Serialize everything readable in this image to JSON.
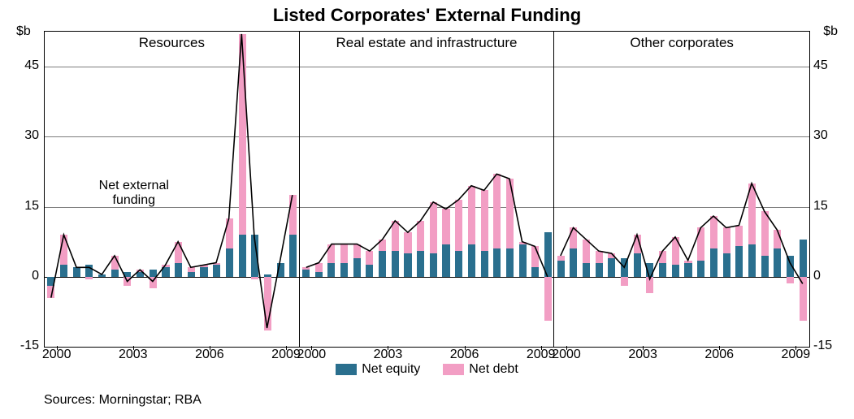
{
  "title": "Listed Corporates' External Funding",
  "y_axis": {
    "unit_label": "$b",
    "min": -15,
    "max": 52.5,
    "ticks": [
      -15,
      0,
      15,
      30,
      45
    ],
    "grid_color": "#7d7d7d",
    "zero_color": "#000000"
  },
  "colors": {
    "net_equity": "#2a6f8e",
    "net_debt": "#f29ec4",
    "line": "#000000",
    "background": "#ffffff"
  },
  "bar_width_ratio": 0.58,
  "line_width": 1.6,
  "x_years_start": 1999.5,
  "x_years_end": 2009.5,
  "x_tick_years": [
    2000,
    2003,
    2006,
    2009
  ],
  "annotation": {
    "panel": 0,
    "text_line1": "Net external",
    "text_line2": "funding",
    "x_year": 2003.0,
    "y_val": 21
  },
  "legend": {
    "items": [
      {
        "label": "Net equity",
        "color_key": "net_equity"
      },
      {
        "label": "Net debt",
        "color_key": "net_debt"
      }
    ]
  },
  "footer": "Sources: Morningstar; RBA",
  "panels": [
    {
      "title": "Resources",
      "data": [
        {
          "t": 1999.5,
          "eq": -2.0,
          "db": -2.5
        },
        {
          "t": 2000.0,
          "eq": 2.5,
          "db": 6.5
        },
        {
          "t": 2000.5,
          "eq": 2.0,
          "db": 0.0
        },
        {
          "t": 2001.0,
          "eq": 2.5,
          "db": -0.5
        },
        {
          "t": 2001.5,
          "eq": 0.5,
          "db": 0.0
        },
        {
          "t": 2002.0,
          "eq": 1.5,
          "db": 3.0
        },
        {
          "t": 2002.5,
          "eq": 1.0,
          "db": -2.0
        },
        {
          "t": 2003.0,
          "eq": 1.0,
          "db": 0.5
        },
        {
          "t": 2003.5,
          "eq": 1.5,
          "db": -2.5
        },
        {
          "t": 2004.0,
          "eq": 2.0,
          "db": 0.5
        },
        {
          "t": 2004.5,
          "eq": 3.0,
          "db": 4.5
        },
        {
          "t": 2005.0,
          "eq": 1.0,
          "db": 1.0
        },
        {
          "t": 2005.5,
          "eq": 2.0,
          "db": 0.5
        },
        {
          "t": 2006.0,
          "eq": 2.5,
          "db": 0.5
        },
        {
          "t": 2006.5,
          "eq": 6.0,
          "db": 6.5
        },
        {
          "t": 2007.0,
          "eq": 9.0,
          "db": 43.0
        },
        {
          "t": 2007.5,
          "eq": 9.0,
          "db": -0.5
        },
        {
          "t": 2008.0,
          "eq": 0.5,
          "db": -11.5
        },
        {
          "t": 2008.5,
          "eq": 3.0,
          "db": 0.0
        },
        {
          "t": 2009.0,
          "eq": 9.0,
          "db": 8.5
        }
      ]
    },
    {
      "title": "Real estate and infrastructure",
      "data": [
        {
          "t": 1999.5,
          "eq": 1.5,
          "db": 0.5
        },
        {
          "t": 2000.0,
          "eq": 1.0,
          "db": 2.0
        },
        {
          "t": 2000.5,
          "eq": 3.0,
          "db": 4.0
        },
        {
          "t": 2001.0,
          "eq": 3.0,
          "db": 4.0
        },
        {
          "t": 2001.5,
          "eq": 4.0,
          "db": 3.0
        },
        {
          "t": 2002.0,
          "eq": 2.5,
          "db": 3.0
        },
        {
          "t": 2002.5,
          "eq": 5.5,
          "db": 2.5
        },
        {
          "t": 2003.0,
          "eq": 5.5,
          "db": 6.5
        },
        {
          "t": 2003.5,
          "eq": 5.0,
          "db": 4.5
        },
        {
          "t": 2004.0,
          "eq": 5.5,
          "db": 6.5
        },
        {
          "t": 2004.5,
          "eq": 5.0,
          "db": 11.0
        },
        {
          "t": 2005.0,
          "eq": 7.0,
          "db": 7.5
        },
        {
          "t": 2005.5,
          "eq": 5.5,
          "db": 11.0
        },
        {
          "t": 2006.0,
          "eq": 7.0,
          "db": 12.5
        },
        {
          "t": 2006.5,
          "eq": 5.5,
          "db": 13.0
        },
        {
          "t": 2007.0,
          "eq": 6.0,
          "db": 16.0
        },
        {
          "t": 2007.5,
          "eq": 6.0,
          "db": 15.0
        },
        {
          "t": 2008.0,
          "eq": 7.0,
          "db": 0.5
        },
        {
          "t": 2008.5,
          "eq": 2.0,
          "db": 4.5
        },
        {
          "t": 2009.0,
          "eq": 9.5,
          "db": -9.5
        }
      ]
    },
    {
      "title": "Other corporates",
      "data": [
        {
          "t": 1999.5,
          "eq": 3.5,
          "db": 1.0
        },
        {
          "t": 2000.0,
          "eq": 6.0,
          "db": 4.5
        },
        {
          "t": 2000.5,
          "eq": 3.0,
          "db": 5.0
        },
        {
          "t": 2001.0,
          "eq": 3.0,
          "db": 2.5
        },
        {
          "t": 2001.5,
          "eq": 4.0,
          "db": 1.0
        },
        {
          "t": 2002.0,
          "eq": 4.0,
          "db": -2.0
        },
        {
          "t": 2002.5,
          "eq": 5.0,
          "db": 4.0
        },
        {
          "t": 2003.0,
          "eq": 3.0,
          "db": -3.5
        },
        {
          "t": 2003.5,
          "eq": 3.0,
          "db": 2.5
        },
        {
          "t": 2004.0,
          "eq": 2.5,
          "db": 6.0
        },
        {
          "t": 2004.5,
          "eq": 3.0,
          "db": 0.5
        },
        {
          "t": 2005.0,
          "eq": 3.5,
          "db": 7.0
        },
        {
          "t": 2005.5,
          "eq": 6.0,
          "db": 7.0
        },
        {
          "t": 2006.0,
          "eq": 5.0,
          "db": 5.5
        },
        {
          "t": 2006.5,
          "eq": 6.5,
          "db": 4.5
        },
        {
          "t": 2007.0,
          "eq": 7.0,
          "db": 13.0
        },
        {
          "t": 2007.5,
          "eq": 4.5,
          "db": 9.5
        },
        {
          "t": 2008.0,
          "eq": 6.0,
          "db": 4.0
        },
        {
          "t": 2008.5,
          "eq": 4.5,
          "db": -1.5
        },
        {
          "t": 2009.0,
          "eq": 8.0,
          "db": -9.5
        }
      ]
    }
  ],
  "typography": {
    "title_fontsize": 22,
    "panel_title_fontsize": 17,
    "axis_fontsize": 16,
    "legend_fontsize": 16,
    "footer_fontsize": 16
  }
}
